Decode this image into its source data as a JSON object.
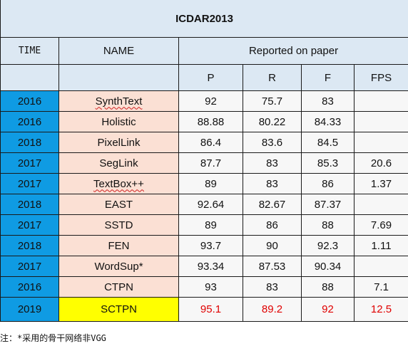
{
  "title": "ICDAR2013",
  "header": {
    "time": "TIME",
    "name": "NAME",
    "reported": "Reported on paper",
    "p": "P",
    "r": "R",
    "f": "F",
    "fps": "FPS"
  },
  "rows": [
    {
      "year": "2016",
      "name": "SynthText",
      "p": "92",
      "r": "75.7",
      "f": "83",
      "fps": ""
    },
    {
      "year": "2016",
      "name": "Holistic",
      "p": "88.88",
      "r": "80.22",
      "f": "84.33",
      "fps": ""
    },
    {
      "year": "2018",
      "name": "PixelLink",
      "p": "86.4",
      "r": "83.6",
      "f": "84.5",
      "fps": ""
    },
    {
      "year": "2017",
      "name": "SegLink",
      "p": "87.7",
      "r": "83",
      "f": "85.3",
      "fps": "20.6"
    },
    {
      "year": "2017",
      "name": "TextBox++",
      "p": "89",
      "r": "83",
      "f": "86",
      "fps": "1.37"
    },
    {
      "year": "2018",
      "name": "EAST",
      "p": "92.64",
      "r": "82.67",
      "f": "87.37",
      "fps": ""
    },
    {
      "year": "2017",
      "name": "SSTD",
      "p": "89",
      "r": "86",
      "f": "88",
      "fps": "7.69"
    },
    {
      "year": "2018",
      "name": "FEN",
      "p": "93.7",
      "r": "90",
      "f": "92.3",
      "fps": "1.11"
    },
    {
      "year": "2017",
      "name": "WordSup*",
      "p": "93.34",
      "r": "87.53",
      "f": "90.34",
      "fps": ""
    },
    {
      "year": "2016",
      "name": "CTPN",
      "p": "93",
      "r": "83",
      "f": "88",
      "fps": "7.1"
    },
    {
      "year": "2019",
      "name": "SCTPN",
      "p": "95.1",
      "r": "89.2",
      "f": "92",
      "fps": "12.5"
    }
  ],
  "note": "注：*采用的骨干网络非VGG",
  "colors": {
    "header_bg": "#dce8f3",
    "year_bg": "#0f9be3",
    "name_bg": "#fbe0d4",
    "highlight_bg": "#ffff00",
    "highlight_text": "#e00000"
  }
}
